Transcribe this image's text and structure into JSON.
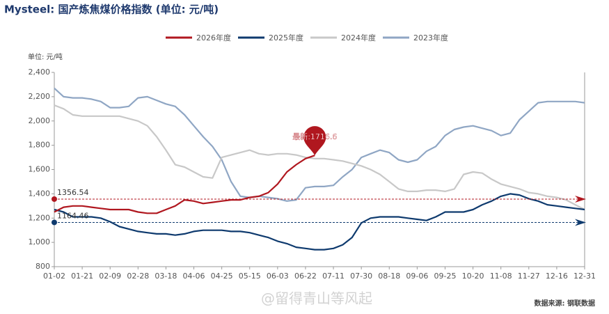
{
  "chart_data": {
    "type": "line",
    "title": "Mysteel: 国产炼焦煤价格指数 (单位: 元/吨)",
    "unit_label": "单位: 元/吨",
    "source": "数据来源: 钢联数据",
    "watermark": "@留得青山等风起",
    "categories": [
      "01-02",
      null,
      null,
      "01-21",
      null,
      null,
      "02-09",
      null,
      null,
      "02-28",
      null,
      null,
      "03-18",
      null,
      null,
      "04-06",
      null,
      null,
      "04-25",
      null,
      null,
      "05-15",
      null,
      null,
      "06-03",
      null,
      null,
      "06-22",
      null,
      null,
      "07-11",
      null,
      null,
      "07-30",
      null,
      null,
      "08-18",
      null,
      null,
      "09-06",
      null,
      null,
      "09-25",
      null,
      null,
      "10-20",
      null,
      null,
      "11-08",
      null,
      null,
      "11-27",
      null,
      null,
      "12-16",
      null,
      null,
      "12-31"
    ],
    "series": [
      {
        "name": "2026年度",
        "color": "#b0171f",
        "values": [
          1250,
          1290,
          1300,
          1300,
          1290,
          1280,
          1270,
          1270,
          1270,
          1250,
          1240,
          1240,
          1270,
          1300,
          1350,
          1340,
          1320,
          1330,
          1340,
          1350,
          1350,
          1370,
          1380,
          1410,
          1480,
          1580,
          1640,
          1690,
          1716.6,
          null,
          null,
          null,
          null,
          null,
          null,
          null,
          null,
          null,
          null,
          null,
          null,
          null,
          null,
          null,
          null,
          null,
          null,
          null,
          null,
          null,
          null,
          null,
          null,
          null,
          null,
          null,
          null,
          null
        ]
      },
      {
        "name": "2025年度",
        "color": "#0e3a6e",
        "values": [
          1270,
          1250,
          1210,
          1210,
          1210,
          1200,
          1170,
          1130,
          1110,
          1090,
          1080,
          1070,
          1070,
          1060,
          1070,
          1090,
          1100,
          1100,
          1100,
          1090,
          1090,
          1080,
          1060,
          1040,
          1010,
          990,
          960,
          950,
          940,
          940,
          950,
          980,
          1040,
          1160,
          1200,
          1210,
          1210,
          1210,
          1200,
          1190,
          1180,
          1210,
          1250,
          1250,
          1250,
          1270,
          1310,
          1340,
          1380,
          1400,
          1390,
          1360,
          1340,
          1310,
          1300,
          1290,
          1280,
          1270
        ]
      },
      {
        "name": "2024年度",
        "color": "#c8c8c8",
        "values": [
          2130,
          2100,
          2050,
          2040,
          2040,
          2040,
          2040,
          2040,
          2020,
          2000,
          1960,
          1870,
          1760,
          1640,
          1620,
          1580,
          1540,
          1530,
          1700,
          1720,
          1740,
          1760,
          1730,
          1720,
          1730,
          1730,
          1720,
          1700,
          1690,
          1690,
          1680,
          1670,
          1650,
          1630,
          1600,
          1560,
          1500,
          1440,
          1420,
          1420,
          1430,
          1430,
          1420,
          1440,
          1560,
          1580,
          1570,
          1520,
          1480,
          1460,
          1440,
          1410,
          1400,
          1380,
          1370,
          1350,
          1310,
          1270
        ]
      },
      {
        "name": "2023年度",
        "color": "#8fa6c4",
        "values": [
          2270,
          2200,
          2190,
          2190,
          2180,
          2160,
          2110,
          2110,
          2120,
          2190,
          2200,
          2170,
          2140,
          2120,
          2050,
          1960,
          1870,
          1790,
          1680,
          1500,
          1380,
          1370,
          1380,
          1370,
          1360,
          1340,
          1350,
          1450,
          1460,
          1460,
          1470,
          1540,
          1600,
          1700,
          1730,
          1760,
          1740,
          1680,
          1660,
          1680,
          1750,
          1790,
          1880,
          1930,
          1950,
          1960,
          1940,
          1920,
          1880,
          1900,
          2010,
          2080,
          2150,
          2160,
          2160,
          2160,
          2160,
          2150
        ]
      }
    ],
    "reference_lines": [
      {
        "value": 1356.54,
        "color": "#b0171f"
      },
      {
        "value": 1164.46,
        "color": "#0e3a6e"
      }
    ],
    "latest_annotation": "最新:1716.6",
    "ylim": [
      800,
      2400
    ],
    "yticks": [
      800,
      {
        "value": 1000,
        "label": "1,000"
      },
      {
        "value": 1200,
        "label": "1,200"
      },
      {
        "value": 1400,
        "label": "1,400"
      },
      {
        "value": 1600,
        "label": "1,600"
      },
      {
        "value": 1800,
        "label": "1,800"
      },
      {
        "value": 2000,
        "label": "2,000"
      },
      {
        "value": 2200,
        "label": "2,200"
      },
      {
        "value": 2400,
        "label": "2,400"
      }
    ],
    "grid": false
  }
}
